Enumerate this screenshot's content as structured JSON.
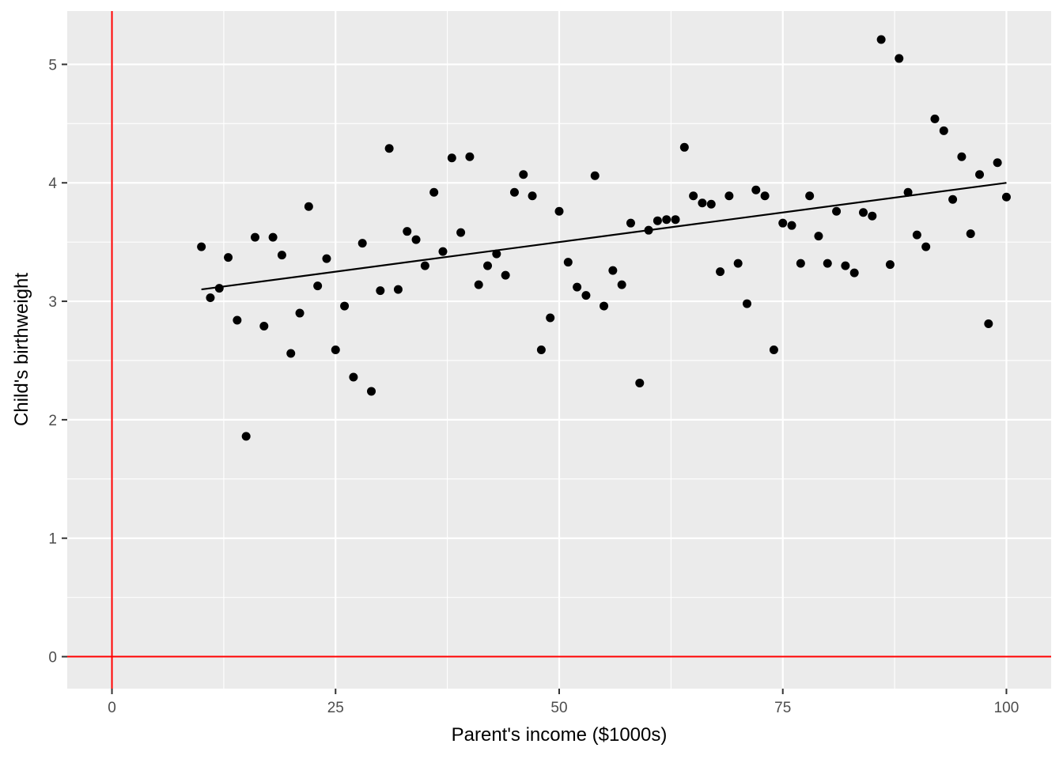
{
  "chart_data": {
    "type": "scatter",
    "title": "",
    "xlabel": "Parent's income ($1000s)",
    "ylabel": "Child's birthweight",
    "xlim": [
      -5,
      105
    ],
    "ylim": [
      -0.27,
      5.45
    ],
    "xticks": [
      0,
      25,
      50,
      75,
      100
    ],
    "yticks": [
      0,
      1,
      2,
      3,
      4,
      5
    ],
    "grid": true,
    "reference_lines": {
      "x": 0,
      "y": 0,
      "color": "#ff0000"
    },
    "points": [
      [
        10,
        3.46
      ],
      [
        11,
        3.03
      ],
      [
        12,
        3.11
      ],
      [
        13,
        3.37
      ],
      [
        14,
        2.84
      ],
      [
        15,
        1.86
      ],
      [
        16,
        3.54
      ],
      [
        17,
        2.79
      ],
      [
        18,
        3.54
      ],
      [
        19,
        3.39
      ],
      [
        20,
        2.56
      ],
      [
        21,
        2.9
      ],
      [
        22,
        3.8
      ],
      [
        23,
        3.13
      ],
      [
        24,
        3.36
      ],
      [
        25,
        2.59
      ],
      [
        26,
        2.96
      ],
      [
        27,
        2.36
      ],
      [
        28,
        3.49
      ],
      [
        29,
        2.24
      ],
      [
        30,
        3.09
      ],
      [
        31,
        4.29
      ],
      [
        32,
        3.1
      ],
      [
        33,
        3.59
      ],
      [
        34,
        3.52
      ],
      [
        35,
        3.3
      ],
      [
        36,
        3.92
      ],
      [
        37,
        3.42
      ],
      [
        38,
        4.21
      ],
      [
        39,
        3.58
      ],
      [
        40,
        4.22
      ],
      [
        41,
        3.14
      ],
      [
        42,
        3.3
      ],
      [
        43,
        3.4
      ],
      [
        44,
        3.22
      ],
      [
        45,
        3.92
      ],
      [
        46,
        4.07
      ],
      [
        47,
        3.89
      ],
      [
        48,
        2.59
      ],
      [
        49,
        2.86
      ],
      [
        50,
        3.76
      ],
      [
        51,
        3.33
      ],
      [
        52,
        3.12
      ],
      [
        53,
        3.05
      ],
      [
        54,
        4.06
      ],
      [
        55,
        2.96
      ],
      [
        56,
        3.26
      ],
      [
        57,
        3.14
      ],
      [
        58,
        3.66
      ],
      [
        59,
        2.31
      ],
      [
        60,
        3.6
      ],
      [
        61,
        3.68
      ],
      [
        62,
        3.69
      ],
      [
        63,
        3.69
      ],
      [
        64,
        4.3
      ],
      [
        65,
        3.89
      ],
      [
        66,
        3.83
      ],
      [
        67,
        3.82
      ],
      [
        68,
        3.25
      ],
      [
        69,
        3.89
      ],
      [
        70,
        3.32
      ],
      [
        71,
        2.98
      ],
      [
        72,
        3.94
      ],
      [
        73,
        3.89
      ],
      [
        74,
        2.59
      ],
      [
        75,
        3.66
      ],
      [
        76,
        3.64
      ],
      [
        77,
        3.32
      ],
      [
        78,
        3.89
      ],
      [
        79,
        3.55
      ],
      [
        80,
        3.32
      ],
      [
        81,
        3.76
      ],
      [
        82,
        3.3
      ],
      [
        83,
        3.24
      ],
      [
        84,
        3.75
      ],
      [
        85,
        3.72
      ],
      [
        86,
        5.21
      ],
      [
        87,
        3.31
      ],
      [
        88,
        5.05
      ],
      [
        89,
        3.92
      ],
      [
        90,
        3.56
      ],
      [
        91,
        3.46
      ],
      [
        92,
        4.54
      ],
      [
        93,
        4.44
      ],
      [
        94,
        3.86
      ],
      [
        95,
        4.22
      ],
      [
        96,
        3.57
      ],
      [
        97,
        4.07
      ],
      [
        98,
        2.81
      ],
      [
        99,
        4.17
      ],
      [
        100,
        3.88
      ]
    ],
    "trend_line": {
      "x": [
        10,
        100
      ],
      "y": [
        3.1,
        4.0
      ]
    },
    "colors": {
      "panel": "#ebebeb",
      "grid_major": "#ffffff",
      "point": "#000000",
      "trend": "#000000",
      "reference": "#ff0000"
    }
  }
}
